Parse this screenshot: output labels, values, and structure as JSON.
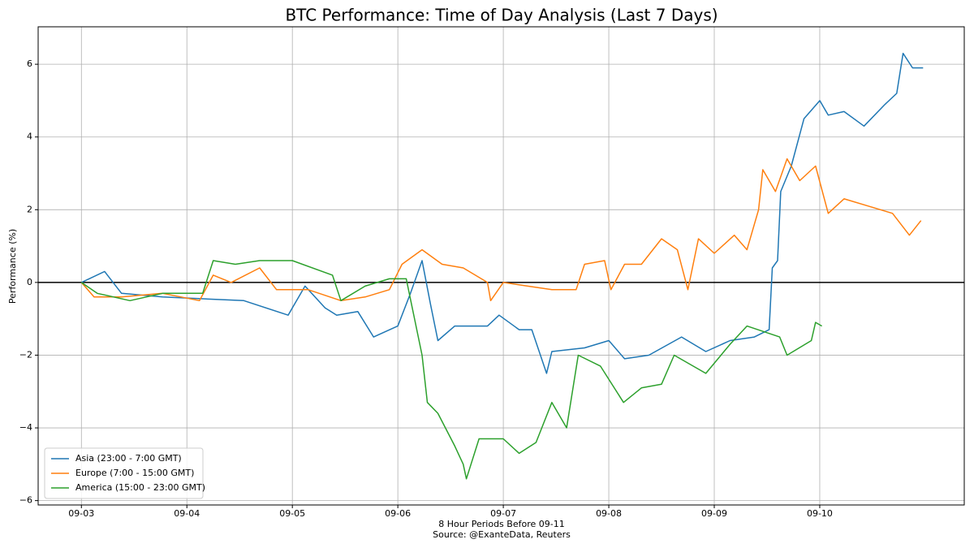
{
  "chart_data": {
    "type": "line",
    "title": "BTC Performance: Time of Day Analysis (Last 7 Days)",
    "xlabel": "8 Hour Periods Before 09-11",
    "source": "Source: @ExanteData, Reuters",
    "ylabel": "Performance (%)",
    "xlim": [
      -0.41,
      8.37
    ],
    "ylim": [
      -6.12,
      7.03
    ],
    "xticks": [
      {
        "value": 0,
        "label": "09-03"
      },
      {
        "value": 1,
        "label": "09-04"
      },
      {
        "value": 2,
        "label": "09-05"
      },
      {
        "value": 3,
        "label": "09-06"
      },
      {
        "value": 4,
        "label": "09-07"
      },
      {
        "value": 5,
        "label": "09-08"
      },
      {
        "value": 6,
        "label": "09-09"
      },
      {
        "value": 7,
        "label": "09-10"
      }
    ],
    "yticks": [
      {
        "value": -6,
        "label": "−6"
      },
      {
        "value": -4,
        "label": "−4"
      },
      {
        "value": -2,
        "label": "−2"
      },
      0,
      2,
      4,
      6
    ],
    "grid": true,
    "hline": 0,
    "legend": "lower left",
    "series": [
      {
        "name": "Asia (23:00 - 7:00 GMT)",
        "color": "#1f77b4",
        "x": [
          0,
          0.22,
          0.38,
          0.77,
          1.15,
          1.54,
          1.96,
          2.12,
          2.31,
          2.42,
          2.62,
          2.77,
          3.0,
          3.12,
          3.23,
          3.31,
          3.38,
          3.54,
          3.85,
          3.96,
          4.15,
          4.27,
          4.41,
          4.46,
          4.77,
          5.0,
          5.15,
          5.38,
          5.69,
          5.92,
          6.15,
          6.38,
          6.52,
          6.55,
          6.6,
          6.63,
          6.73,
          6.85,
          7.0,
          7.08,
          7.23,
          7.42,
          7.62,
          7.73,
          7.79,
          7.88,
          7.98
        ],
        "values": [
          0,
          0.3,
          -0.3,
          -0.4,
          -0.45,
          -0.5,
          -0.9,
          -0.1,
          -0.7,
          -0.9,
          -0.8,
          -1.5,
          -1.2,
          -0.3,
          0.6,
          -0.6,
          -1.6,
          -1.2,
          -1.2,
          -0.9,
          -1.3,
          -1.3,
          -2.5,
          -1.9,
          -1.8,
          -1.6,
          -2.1,
          -2.0,
          -1.5,
          -1.9,
          -1.6,
          -1.5,
          -1.3,
          0.4,
          0.6,
          2.5,
          3.2,
          4.5,
          5.0,
          4.6,
          4.7,
          4.3,
          4.9,
          5.2,
          6.3,
          5.9,
          5.9
        ]
      },
      {
        "name": "Europe (7:00 - 15:00 GMT)",
        "color": "#ff7f0e",
        "x": [
          0,
          0.12,
          0.38,
          0.77,
          1.12,
          1.25,
          1.42,
          1.69,
          1.85,
          2.15,
          2.46,
          2.69,
          2.92,
          3.04,
          3.23,
          3.42,
          3.62,
          3.85,
          3.88,
          4.0,
          4.23,
          4.46,
          4.69,
          4.77,
          4.96,
          5.02,
          5.15,
          5.31,
          5.5,
          5.65,
          5.75,
          5.85,
          6.0,
          6.19,
          6.31,
          6.42,
          6.46,
          6.58,
          6.69,
          6.81,
          6.96,
          7.08,
          7.23,
          7.46,
          7.69,
          7.85,
          7.96
        ],
        "values": [
          0,
          -0.4,
          -0.4,
          -0.3,
          -0.5,
          0.2,
          0.0,
          0.4,
          -0.2,
          -0.2,
          -0.5,
          -0.4,
          -0.2,
          0.5,
          0.9,
          0.5,
          0.4,
          0.0,
          -0.5,
          0.0,
          -0.1,
          -0.2,
          -0.2,
          0.5,
          0.6,
          -0.2,
          0.5,
          0.5,
          1.2,
          0.9,
          -0.2,
          1.2,
          0.8,
          1.3,
          0.9,
          2.0,
          3.1,
          2.5,
          3.4,
          2.8,
          3.2,
          1.9,
          2.3,
          2.1,
          1.9,
          1.3,
          1.7
        ]
      },
      {
        "name": "America (15:00 - 23:00 GMT)",
        "color": "#2ca02c",
        "x": [
          0,
          0.15,
          0.46,
          0.77,
          1.15,
          1.25,
          1.46,
          1.69,
          2.0,
          2.38,
          2.46,
          2.69,
          2.92,
          3.08,
          3.23,
          3.28,
          3.38,
          3.54,
          3.62,
          3.65,
          3.77,
          4.0,
          4.15,
          4.31,
          4.46,
          4.6,
          4.71,
          4.92,
          5.14,
          5.31,
          5.5,
          5.62,
          5.92,
          6.15,
          6.31,
          6.62,
          6.69,
          6.92,
          6.96,
          7.02
        ],
        "values": [
          0,
          -0.3,
          -0.5,
          -0.3,
          -0.3,
          0.6,
          0.5,
          0.6,
          0.6,
          0.2,
          -0.5,
          -0.1,
          0.1,
          0.1,
          -2.0,
          -3.3,
          -3.6,
          -4.5,
          -5.0,
          -5.4,
          -4.3,
          -4.3,
          -4.7,
          -4.4,
          -3.3,
          -4.0,
          -2.0,
          -2.3,
          -3.3,
          -2.9,
          -2.8,
          -2.0,
          -2.5,
          -1.7,
          -1.2,
          -1.5,
          -2.0,
          -1.6,
          -1.1,
          -1.2
        ]
      }
    ]
  }
}
